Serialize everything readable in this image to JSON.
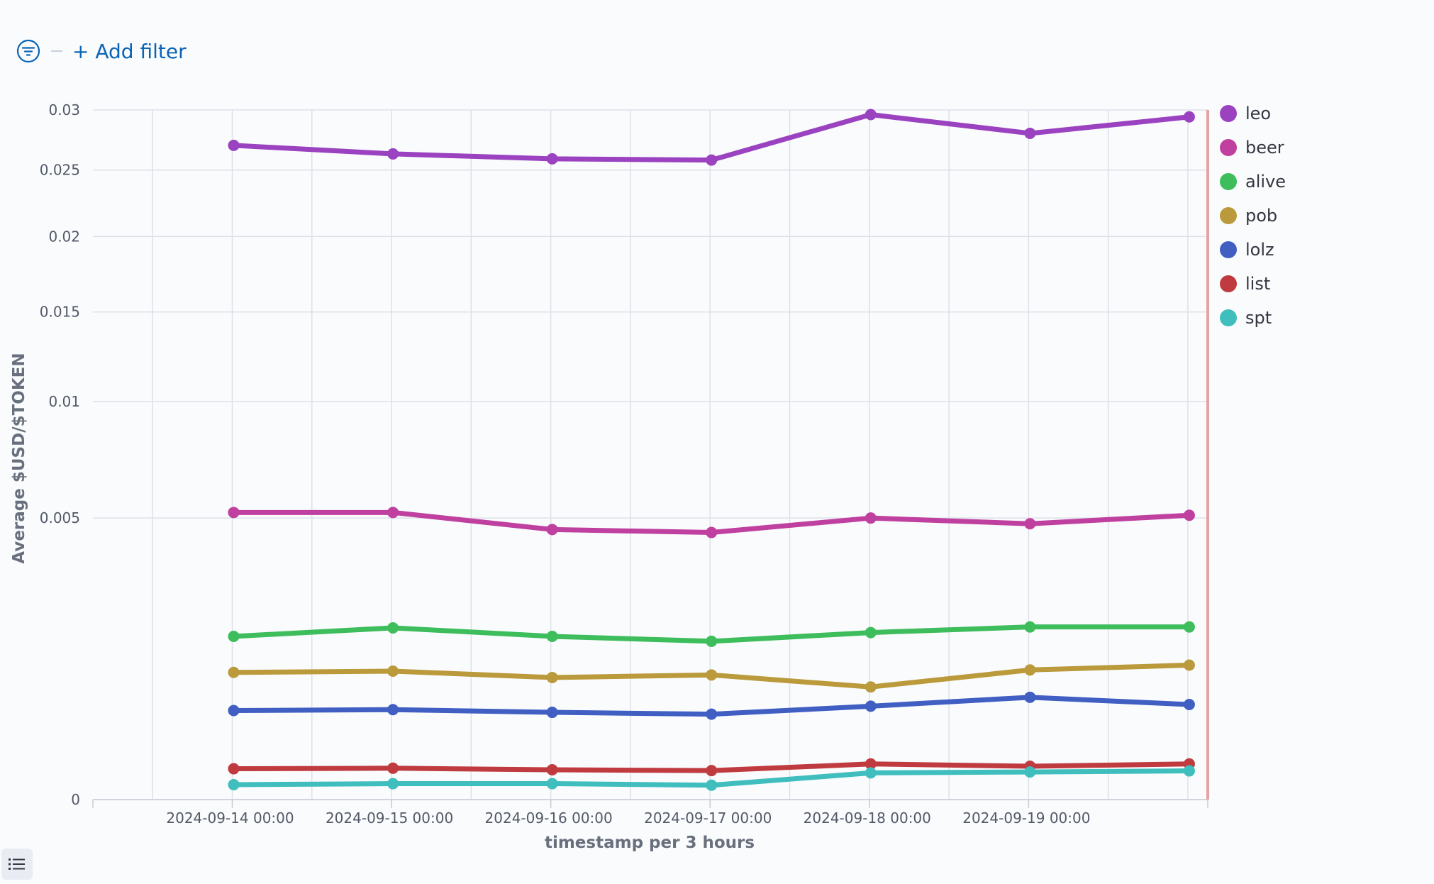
{
  "toolbar": {
    "filter_icon": "filter-icon",
    "add_filter_label": "+ Add filter"
  },
  "legend_toggle_icon": "list-icon",
  "chart_data": {
    "type": "line",
    "xlabel": "timestamp per 3 hours",
    "ylabel": "Average $USD/$TOKEN",
    "x_ticks": [
      "2024-09-14 00:00",
      "2024-09-15 00:00",
      "2024-09-16 00:00",
      "2024-09-17 00:00",
      "2024-09-18 00:00",
      "2024-09-19 00:00"
    ],
    "y_ticks": [
      {
        "label": "0",
        "value": 0
      },
      {
        "label": "0.005",
        "value": 0.005
      },
      {
        "label": "0.01",
        "value": 0.01
      },
      {
        "label": "0.015",
        "value": 0.015
      },
      {
        "label": "0.02",
        "value": 0.02
      },
      {
        "label": "0.025",
        "value": 0.025
      },
      {
        "label": "0.03",
        "value": 0.03
      }
    ],
    "y_scale": "sqrt",
    "ylim": [
      0,
      0.03
    ],
    "xlim": [
      "2024-09-13 03:00",
      "2024-09-20 03:00"
    ],
    "grid": true,
    "legend_position": "right",
    "x": [
      "2024-09-14 00:00",
      "2024-09-15 00:00",
      "2024-09-16 00:00",
      "2024-09-17 00:00",
      "2024-09-18 00:00",
      "2024-09-19 00:00",
      "2024-09-20 00:00"
    ],
    "series": [
      {
        "name": "leo",
        "color": "#9a42c0",
        "values": [
          0.027,
          0.0263,
          0.0259,
          0.0258,
          0.0296,
          0.028,
          0.0294
        ]
      },
      {
        "name": "beer",
        "color": "#c040a0",
        "values": [
          0.0052,
          0.0052,
          0.0046,
          0.0045,
          0.005,
          0.0048,
          0.0051
        ]
      },
      {
        "name": "alive",
        "color": "#3ebd5c",
        "values": [
          0.00168,
          0.00186,
          0.00168,
          0.00158,
          0.00176,
          0.00188,
          0.00188
        ]
      },
      {
        "name": "pob",
        "color": "#bb9a3c",
        "values": [
          0.00102,
          0.00104,
          0.00094,
          0.00098,
          0.0008,
          0.00106,
          0.00114
        ]
      },
      {
        "name": "lolz",
        "color": "#415fc2",
        "values": [
          0.0005,
          0.00051,
          0.00048,
          0.00046,
          0.00055,
          0.00066,
          0.00057
        ]
      },
      {
        "name": "list",
        "color": "#bf3b3f",
        "values": [
          6e-05,
          6.2e-05,
          5.6e-05,
          5.3e-05,
          8e-05,
          7e-05,
          8e-05
        ]
      },
      {
        "name": "spt",
        "color": "#40bebe",
        "values": [
          1.4e-05,
          1.6e-05,
          1.6e-05,
          1.3e-05,
          4.5e-05,
          4.8e-05,
          5.2e-05
        ]
      }
    ]
  }
}
